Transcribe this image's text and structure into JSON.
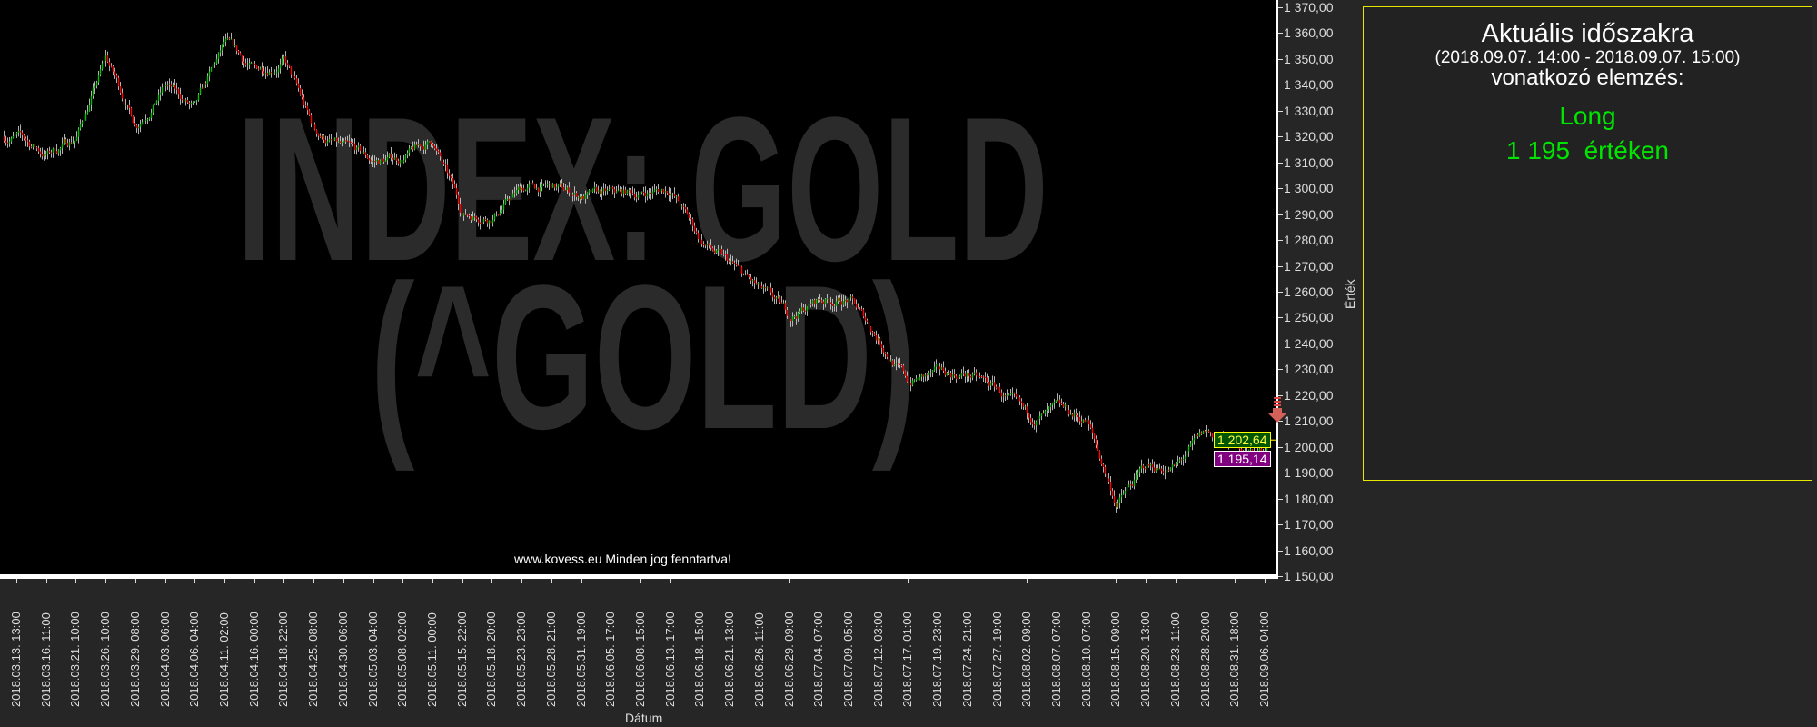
{
  "watermark": {
    "line1": "INDEX: GOLD",
    "line2": "(^GOLD)"
  },
  "footer": "www.kovess.eu Minden jog fenntartva!",
  "panel": {
    "title": "Aktuális időszakra",
    "period": "(2018.09.07. 14:00 - 2018.09.07. 15:00)",
    "subtitle": "vonatkozó elemzés:",
    "signal": "Long",
    "level": "1 195  értéken",
    "border_color": "#e6e600",
    "signal_color": "#00e600"
  },
  "price_labels": {
    "last": "1 202,64",
    "target": "1 195,14"
  },
  "chart_data": {
    "type": "candlestick",
    "xlabel": "Dátum",
    "ylabel": "Érték",
    "ylim": [
      1150,
      1370
    ],
    "y_ticks": [
      "1 370,00",
      "1 360,00",
      "1 350,00",
      "1 340,00",
      "1 330,00",
      "1 320,00",
      "1 310,00",
      "1 300,00",
      "1 290,00",
      "1 280,00",
      "1 270,00",
      "1 260,00",
      "1 250,00",
      "1 240,00",
      "1 230,00",
      "1 220,00",
      "1 210,00",
      "1 200,00",
      "1 190,00",
      "1 180,00",
      "1 170,00",
      "1 160,00",
      "1 150,00"
    ],
    "x_ticks": [
      "2018.03.13. 13:00",
      "2018.03.16. 11:00",
      "2018.03.21. 10:00",
      "2018.03.26. 10:00",
      "2018.03.29. 08:00",
      "2018.04.03. 06:00",
      "2018.04.06. 04:00",
      "2018.04.11. 02:00",
      "2018.04.16. 00:00",
      "2018.04.18. 22:00",
      "2018.04.25. 08:00",
      "2018.04.30. 06:00",
      "2018.05.03. 04:00",
      "2018.05.08. 02:00",
      "2018.05.11. 00:00",
      "2018.05.15. 22:00",
      "2018.05.18. 20:00",
      "2018.05.23. 23:00",
      "2018.05.28. 21:00",
      "2018.05.31. 19:00",
      "2018.06.05. 17:00",
      "2018.06.08. 15:00",
      "2018.06.13. 17:00",
      "2018.06.18. 15:00",
      "2018.06.21. 13:00",
      "2018.06.26. 11:00",
      "2018.06.29. 09:00",
      "2018.07.04. 07:00",
      "2018.07.09. 05:00",
      "2018.07.12. 03:00",
      "2018.07.17. 01:00",
      "2018.07.19. 23:00",
      "2018.07.24. 21:00",
      "2018.07.27. 19:00",
      "2018.08.02. 09:00",
      "2018.08.07. 07:00",
      "2018.08.10. 07:00",
      "2018.08.15. 09:00",
      "2018.08.20. 13:00",
      "2018.08.23. 11:00",
      "2018.08.28. 20:00",
      "2018.08.31. 18:00",
      "2018.09.06. 04:00"
    ],
    "approx_close_at_ticks": [
      1320,
      1313,
      1320,
      1350,
      1325,
      1340,
      1330,
      1355,
      1345,
      1350,
      1322,
      1315,
      1310,
      1312,
      1318,
      1290,
      1290,
      1300,
      1300,
      1297,
      1297,
      1298,
      1300,
      1280,
      1270,
      1260,
      1250,
      1257,
      1257,
      1242,
      1225,
      1228,
      1228,
      1222,
      1210,
      1213,
      1210,
      1178,
      1192,
      1192,
      1205,
      1200,
      1198
    ],
    "last_price": 1202.64,
    "target_price": 1195.14,
    "signal": "down-arrow",
    "up_color": "#00c000",
    "down_color": "#ff0000",
    "grid": false
  }
}
